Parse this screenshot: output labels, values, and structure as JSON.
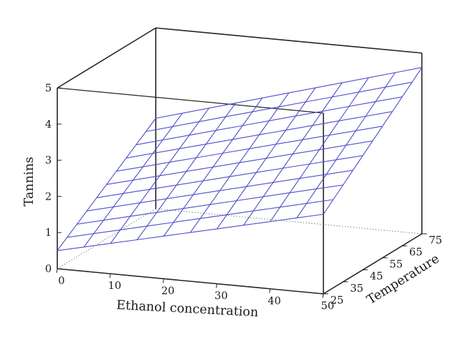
{
  "chart_data": {
    "type": "surface",
    "xlabel": "Ethanol concentration",
    "ylabel": "Temperature",
    "zlabel": "Tannins",
    "xlim": [
      0,
      50
    ],
    "ylim": [
      25,
      75
    ],
    "zlim": [
      0,
      5
    ],
    "x_ticks": [
      "0",
      "10",
      "20",
      "30",
      "40",
      "50"
    ],
    "y_ticks": [
      "25",
      "35",
      "45",
      "55",
      "65",
      "75"
    ],
    "z_ticks": [
      "0",
      "1",
      "2",
      "3",
      "4",
      "5"
    ],
    "surface_corners": [
      {
        "x": 0,
        "y": 25,
        "z": 0.5
      },
      {
        "x": 50,
        "y": 25,
        "z": 2.2
      },
      {
        "x": 0,
        "y": 75,
        "z": 2.5
      },
      {
        "x": 50,
        "y": 75,
        "z": 4.6
      }
    ],
    "grid_steps": 10,
    "mesh_color": "#4b4bc8",
    "grid": false
  }
}
